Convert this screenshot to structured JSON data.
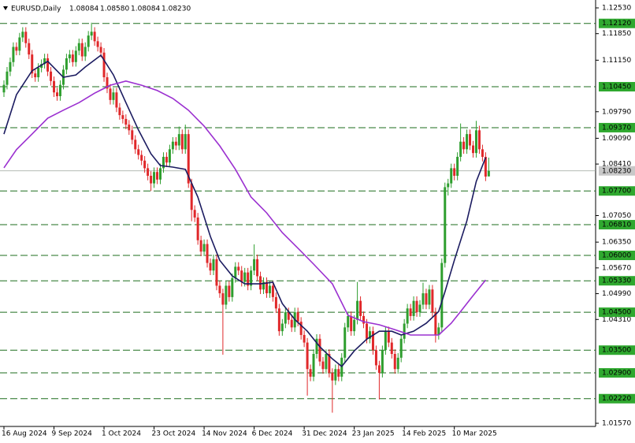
{
  "chart_data": {
    "type": "candlestick",
    "title": "EURUSD,Daily",
    "last_bar_labels": [
      "1.08084",
      "1.08580",
      "1.08084",
      "1.08230"
    ],
    "up_color": "#2e9e2e",
    "down_color": "#e0282a",
    "ylim": [
      1.0157,
      1.1253
    ],
    "yticks": [
      {
        "value": 1.1253,
        "label": "1.12530"
      },
      {
        "value": 1.1185,
        "label": "1.11850"
      },
      {
        "value": 1.1115,
        "label": "1.11150"
      },
      {
        "value": 1.0979,
        "label": "1.09790"
      },
      {
        "value": 1.0909,
        "label": "1.09090"
      },
      {
        "value": 1.0841,
        "label": "1.08410"
      },
      {
        "value": 1.0705,
        "label": "1.07050"
      },
      {
        "value": 1.0635,
        "label": "1.06350"
      },
      {
        "value": 1.0567,
        "label": "1.05670"
      },
      {
        "value": 1.0499,
        "label": "1.04990"
      },
      {
        "value": 1.0431,
        "label": "1.04310"
      },
      {
        "value": 1.0157,
        "label": "1.01570"
      }
    ],
    "levels": [
      {
        "value": 1.1212,
        "label": "1.12120"
      },
      {
        "value": 1.1045,
        "label": "1.10450"
      },
      {
        "value": 1.0937,
        "label": "1.09370"
      },
      {
        "value": 1.077,
        "label": "1.07700"
      },
      {
        "value": 1.0681,
        "label": "1.06810"
      },
      {
        "value": 1.06,
        "label": "1.06000"
      },
      {
        "value": 1.0533,
        "label": "1.05330"
      },
      {
        "value": 1.045,
        "label": "1.04500"
      },
      {
        "value": 1.035,
        "label": "1.03500"
      },
      {
        "value": 1.029,
        "label": "1.02900"
      },
      {
        "value": 1.0222,
        "label": "1.02220"
      }
    ],
    "level_color": "#1e6e1e",
    "current": {
      "value": 1.0823,
      "label": "1.08230"
    },
    "categories": [
      "16 Aug 2024",
      null,
      null,
      null,
      null,
      null,
      null,
      null,
      null,
      null,
      null,
      null,
      null,
      null,
      null,
      null,
      "9 Sep 2024",
      null,
      null,
      null,
      null,
      null,
      null,
      null,
      null,
      null,
      null,
      null,
      null,
      null,
      null,
      null,
      "1 Oct 2024",
      null,
      null,
      null,
      null,
      null,
      null,
      null,
      null,
      null,
      null,
      null,
      null,
      null,
      null,
      null,
      "23 Oct 2024",
      null,
      null,
      null,
      null,
      null,
      null,
      null,
      null,
      null,
      null,
      null,
      null,
      null,
      null,
      null,
      "14 Nov 2024",
      null,
      null,
      null,
      null,
      null,
      null,
      null,
      null,
      null,
      null,
      null,
      null,
      null,
      null,
      null,
      "6 Dec 2024",
      null,
      null,
      null,
      null,
      null,
      null,
      null,
      null,
      null,
      null,
      null,
      null,
      null,
      null,
      null,
      "31 Dec 2024",
      null,
      null,
      null,
      null,
      null,
      null,
      null,
      null,
      null,
      null,
      null,
      null,
      null,
      null,
      null,
      "23 Jan 2025",
      null,
      null,
      null,
      null,
      null,
      null,
      null,
      null,
      null,
      null,
      null,
      null,
      null,
      null,
      null,
      "14 Feb 2025",
      null,
      null,
      null,
      null,
      null,
      null,
      null,
      null,
      null,
      null,
      null,
      null,
      null,
      null,
      null,
      "10 Mar 2025",
      null,
      null,
      null,
      null,
      null,
      null,
      null,
      null,
      null,
      null,
      null
    ],
    "candles": [
      [
        1.103,
        1.1062,
        1.1018,
        1.105
      ],
      [
        1.105,
        1.1097,
        1.1038,
        1.1085
      ],
      [
        1.1085,
        1.1122,
        1.1073,
        1.111
      ],
      [
        1.111,
        1.1162,
        1.1098,
        1.115
      ],
      [
        1.115,
        1.1162,
        1.1128,
        1.114
      ],
      [
        1.114,
        1.1187,
        1.1128,
        1.1175
      ],
      [
        1.1175,
        1.1202,
        1.1163,
        1.119
      ],
      [
        1.119,
        1.1202,
        1.1148,
        1.116
      ],
      [
        1.116,
        1.1172,
        1.1118,
        1.113
      ],
      [
        1.113,
        1.1142,
        1.1068,
        1.108
      ],
      [
        1.108,
        1.1092,
        1.1058,
        1.107
      ],
      [
        1.107,
        1.1107,
        1.1058,
        1.1095
      ],
      [
        1.1095,
        1.1117,
        1.1083,
        1.1105
      ],
      [
        1.1105,
        1.1132,
        1.1093,
        1.112
      ],
      [
        1.112,
        1.1132,
        1.1073,
        1.1085
      ],
      [
        1.1085,
        1.1097,
        1.1048,
        1.106
      ],
      [
        1.106,
        1.1072,
        1.1018,
        1.103
      ],
      [
        1.103,
        1.1042,
        1.1008,
        1.102
      ],
      [
        1.102,
        1.1062,
        1.1008,
        1.105
      ],
      [
        1.105,
        1.1102,
        1.1038,
        1.109
      ],
      [
        1.109,
        1.1132,
        1.1078,
        1.112
      ],
      [
        1.112,
        1.1142,
        1.1108,
        1.113
      ],
      [
        1.113,
        1.1142,
        1.1098,
        1.111
      ],
      [
        1.111,
        1.1152,
        1.1098,
        1.114
      ],
      [
        1.114,
        1.1172,
        1.1128,
        1.116
      ],
      [
        1.116,
        1.1172,
        1.1113,
        1.1125
      ],
      [
        1.1125,
        1.1162,
        1.1113,
        1.115
      ],
      [
        1.115,
        1.1192,
        1.1138,
        1.118
      ],
      [
        1.118,
        1.1214,
        1.1168,
        1.119
      ],
      [
        1.119,
        1.1202,
        1.1153,
        1.1165
      ],
      [
        1.1165,
        1.1177,
        1.1138,
        1.115
      ],
      [
        1.115,
        1.1162,
        1.1123,
        1.1135
      ],
      [
        1.1135,
        1.1147,
        1.1058,
        1.107
      ],
      [
        1.107,
        1.1082,
        1.1028,
        1.104
      ],
      [
        1.104,
        1.1052,
        1.0998,
        1.101
      ],
      [
        1.101,
        1.1042,
        1.0998,
        1.103
      ],
      [
        1.103,
        1.1042,
        1.0978,
        1.099
      ],
      [
        1.099,
        1.1002,
        1.0958,
        1.097
      ],
      [
        1.097,
        1.0982,
        1.0948,
        1.096
      ],
      [
        1.096,
        1.0972,
        1.0933,
        1.0945
      ],
      [
        1.0945,
        1.0957,
        1.0918,
        1.093
      ],
      [
        1.093,
        1.0942,
        1.0893,
        1.0905
      ],
      [
        1.0905,
        1.0917,
        1.0868,
        1.088
      ],
      [
        1.088,
        1.0892,
        1.0853,
        1.0865
      ],
      [
        1.0865,
        1.0877,
        1.0838,
        1.085
      ],
      [
        1.085,
        1.0862,
        1.0818,
        1.083
      ],
      [
        1.083,
        1.0842,
        1.0798,
        1.081
      ],
      [
        1.081,
        1.0822,
        1.077,
        1.079
      ],
      [
        1.079,
        1.0832,
        1.0778,
        1.082
      ],
      [
        1.082,
        1.0832,
        1.0788,
        1.08
      ],
      [
        1.08,
        1.0842,
        1.0788,
        1.083
      ],
      [
        1.083,
        1.0872,
        1.0818,
        1.086
      ],
      [
        1.086,
        1.0872,
        1.0833,
        1.0845
      ],
      [
        1.0845,
        1.0892,
        1.0833,
        1.088
      ],
      [
        1.088,
        1.0912,
        1.0868,
        1.09
      ],
      [
        1.09,
        1.0912,
        1.0878,
        1.089
      ],
      [
        1.089,
        1.094,
        1.0878,
        1.092
      ],
      [
        1.092,
        1.0932,
        1.0868,
        1.088
      ],
      [
        1.088,
        1.0945,
        1.0868,
        1.092
      ],
      [
        1.092,
        1.0932,
        1.0778,
        1.079
      ],
      [
        1.079,
        1.0802,
        1.069,
        1.072
      ],
      [
        1.072,
        1.0732,
        1.0688,
        1.07
      ],
      [
        1.07,
        1.0712,
        1.0628,
        1.064
      ],
      [
        1.064,
        1.0652,
        1.0598,
        1.061
      ],
      [
        1.061,
        1.0642,
        1.0598,
        1.063
      ],
      [
        1.063,
        1.0642,
        1.0568,
        1.058
      ],
      [
        1.058,
        1.0592,
        1.0548,
        1.056
      ],
      [
        1.056,
        1.0602,
        1.0548,
        1.059
      ],
      [
        1.059,
        1.0602,
        1.0508,
        1.052
      ],
      [
        1.052,
        1.0532,
        1.0488,
        1.05
      ],
      [
        1.05,
        1.0512,
        1.0338,
        1.047
      ],
      [
        1.047,
        1.0532,
        1.0458,
        1.052
      ],
      [
        1.052,
        1.0532,
        1.0478,
        1.049
      ],
      [
        1.049,
        1.0552,
        1.0478,
        1.054
      ],
      [
        1.054,
        1.0582,
        1.0528,
        1.057
      ],
      [
        1.057,
        1.0582,
        1.0548,
        1.056
      ],
      [
        1.056,
        1.0572,
        1.0518,
        1.053
      ],
      [
        1.053,
        1.0567,
        1.0518,
        1.0555
      ],
      [
        1.0555,
        1.0567,
        1.0508,
        1.052
      ],
      [
        1.052,
        1.0572,
        1.0508,
        1.056
      ],
      [
        1.056,
        1.0629,
        1.0548,
        1.059
      ],
      [
        1.059,
        1.0602,
        1.0533,
        1.0545
      ],
      [
        1.0545,
        1.0557,
        1.0498,
        1.051
      ],
      [
        1.051,
        1.0542,
        1.0498,
        1.053
      ],
      [
        1.053,
        1.0542,
        1.0488,
        1.05
      ],
      [
        1.05,
        1.0532,
        1.0488,
        1.052
      ],
      [
        1.052,
        1.0532,
        1.0478,
        1.049
      ],
      [
        1.049,
        1.0502,
        1.0448,
        1.046
      ],
      [
        1.046,
        1.0472,
        1.0388,
        1.04
      ],
      [
        1.04,
        1.0432,
        1.0388,
        1.042
      ],
      [
        1.042,
        1.0462,
        1.0408,
        1.045
      ],
      [
        1.045,
        1.0462,
        1.0418,
        1.043
      ],
      [
        1.043,
        1.0442,
        1.0398,
        1.041
      ],
      [
        1.041,
        1.0462,
        1.0398,
        1.045
      ],
      [
        1.045,
        1.0462,
        1.0413,
        1.0425
      ],
      [
        1.0425,
        1.0437,
        1.0378,
        1.039
      ],
      [
        1.039,
        1.0402,
        1.0358,
        1.037
      ],
      [
        1.037,
        1.0382,
        1.023,
        1.03
      ],
      [
        1.03,
        1.0312,
        1.0268,
        1.028
      ],
      [
        1.028,
        1.0352,
        1.0268,
        1.034
      ],
      [
        1.034,
        1.0392,
        1.0328,
        1.038
      ],
      [
        1.038,
        1.0392,
        1.0308,
        1.032
      ],
      [
        1.032,
        1.0332,
        1.0288,
        1.03
      ],
      [
        1.03,
        1.0352,
        1.0288,
        1.034
      ],
      [
        1.034,
        1.0352,
        1.0278,
        1.029
      ],
      [
        1.029,
        1.0302,
        1.0185,
        1.027
      ],
      [
        1.027,
        1.0312,
        1.0258,
        1.03
      ],
      [
        1.03,
        1.0312,
        1.0268,
        1.028
      ],
      [
        1.028,
        1.0342,
        1.0268,
        1.033
      ],
      [
        1.033,
        1.0422,
        1.0318,
        1.041
      ],
      [
        1.041,
        1.0452,
        1.0398,
        1.044
      ],
      [
        1.044,
        1.0452,
        1.0388,
        1.04
      ],
      [
        1.04,
        1.0442,
        1.0388,
        1.043
      ],
      [
        1.043,
        1.053,
        1.0418,
        1.048
      ],
      [
        1.048,
        1.0492,
        1.0428,
        1.044
      ],
      [
        1.044,
        1.0452,
        1.0408,
        1.042
      ],
      [
        1.042,
        1.0432,
        1.0368,
        1.038
      ],
      [
        1.038,
        1.0412,
        1.0368,
        1.04
      ],
      [
        1.04,
        1.0412,
        1.0338,
        1.035
      ],
      [
        1.035,
        1.0362,
        1.0298,
        1.031
      ],
      [
        1.031,
        1.0322,
        1.022,
        1.029
      ],
      [
        1.029,
        1.0362,
        1.0278,
        1.035
      ],
      [
        1.035,
        1.0412,
        1.0338,
        1.04
      ],
      [
        1.04,
        1.0412,
        1.0358,
        1.037
      ],
      [
        1.037,
        1.0382,
        1.0328,
        1.034
      ],
      [
        1.034,
        1.0352,
        1.0288,
        1.03
      ],
      [
        1.03,
        1.0342,
        1.0288,
        1.033
      ],
      [
        1.033,
        1.0392,
        1.0318,
        1.038
      ],
      [
        1.038,
        1.0432,
        1.0368,
        1.042
      ],
      [
        1.042,
        1.0472,
        1.0408,
        1.046
      ],
      [
        1.046,
        1.0472,
        1.0428,
        1.044
      ],
      [
        1.044,
        1.0492,
        1.0428,
        1.048
      ],
      [
        1.048,
        1.0492,
        1.0438,
        1.045
      ],
      [
        1.045,
        1.0482,
        1.0438,
        1.047
      ],
      [
        1.047,
        1.0528,
        1.0458,
        1.05
      ],
      [
        1.05,
        1.0512,
        1.0458,
        1.047
      ],
      [
        1.047,
        1.0522,
        1.0458,
        1.051
      ],
      [
        1.051,
        1.0522,
        1.0438,
        1.045
      ],
      [
        1.045,
        1.0462,
        1.037,
        1.039
      ],
      [
        1.039,
        1.0422,
        1.0378,
        1.041
      ],
      [
        1.041,
        1.0592,
        1.0398,
        1.058
      ],
      [
        1.058,
        1.0792,
        1.0568,
        1.078
      ],
      [
        1.078,
        1.0802,
        1.0758,
        1.079
      ],
      [
        1.079,
        1.0842,
        1.0778,
        1.083
      ],
      [
        1.083,
        1.0842,
        1.0798,
        1.081
      ],
      [
        1.081,
        1.0872,
        1.0798,
        1.086
      ],
      [
        1.086,
        1.0948,
        1.0848,
        1.09
      ],
      [
        1.09,
        1.0912,
        1.0868,
        1.088
      ],
      [
        1.088,
        1.0932,
        1.0868,
        1.092
      ],
      [
        1.092,
        1.0932,
        1.0878,
        1.089
      ],
      [
        1.089,
        1.0902,
        1.0858,
        1.087
      ],
      [
        1.087,
        1.0955,
        1.0858,
        1.093
      ],
      [
        1.093,
        1.0942,
        1.0868,
        1.088
      ],
      [
        1.088,
        1.0892,
        1.0848,
        1.086
      ],
      [
        1.086,
        1.0872,
        1.0796,
        1.0808
      ],
      [
        1.08084,
        1.0858,
        1.08084,
        1.0823
      ]
    ],
    "ma": [
      {
        "color": "#1b1b60",
        "x": [
          0,
          4,
          9,
          14,
          19,
          23,
          26,
          31,
          35,
          39,
          43,
          47,
          50,
          54,
          58,
          62,
          66,
          69,
          73,
          77,
          82,
          86,
          89,
          93,
          97,
          101,
          105,
          108,
          112,
          116,
          120,
          124,
          127,
          131,
          135,
          139,
          141,
          144,
          148,
          151,
          154
        ],
        "values": [
          1.092,
          1.1024,
          1.1087,
          1.1112,
          1.107,
          1.1076,
          1.1097,
          1.1128,
          1.1076,
          1.1003,
          1.0931,
          1.0868,
          1.0837,
          1.0833,
          1.0827,
          1.0754,
          1.065,
          1.0587,
          1.0546,
          1.0525,
          1.0525,
          1.0529,
          1.0473,
          1.0431,
          1.04,
          1.0359,
          1.0327,
          1.0307,
          1.0348,
          1.0379,
          1.04,
          1.04,
          1.039,
          1.04,
          1.0421,
          1.0452,
          1.0504,
          1.0587,
          1.0691,
          1.0795,
          1.0858
        ]
      },
      {
        "color": "#9b30d0",
        "x": [
          0,
          4,
          9,
          14,
          19,
          24,
          29,
          34,
          39,
          44,
          49,
          54,
          59,
          64,
          69,
          74,
          79,
          84,
          89,
          94,
          99,
          105,
          110,
          115,
          120,
          125,
          130,
          135,
          139,
          143,
          146,
          150,
          154
        ],
        "values": [
          1.0831,
          1.0879,
          1.092,
          1.0962,
          1.0983,
          1.1003,
          1.1028,
          1.1049,
          1.106,
          1.1049,
          1.1035,
          1.1014,
          1.0983,
          1.0941,
          1.0889,
          1.0827,
          1.0754,
          1.0712,
          1.066,
          1.0619,
          1.0577,
          1.0525,
          1.0442,
          1.0425,
          1.0417,
          1.0404,
          1.039,
          1.039,
          1.039,
          1.0421,
          1.0452,
          1.0494,
          1.0535
        ]
      }
    ]
  }
}
